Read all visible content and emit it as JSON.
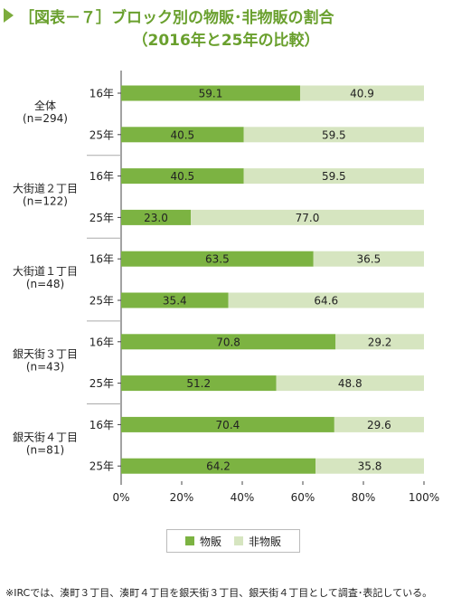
{
  "title": "［図表－７］ブロック別の物販･非物販の割合",
  "subtitle": "（2016年と25年の比較）",
  "colors": {
    "buppan": "#7cb342",
    "hibuppan": "#d6e5c0",
    "divider": "#aaaaaa"
  },
  "legend": {
    "buppan": "物販",
    "hibuppan": "非物販"
  },
  "note": "※IRCでは、湊町３丁目、湊町４丁目を銀天街３丁目、銀天街４丁目として調査･表記している。",
  "chart_data": {
    "type": "bar",
    "orientation": "horizontal",
    "stacked": true,
    "xlim": [
      0,
      100
    ],
    "x_ticks": [
      "0%",
      "20%",
      "40%",
      "60%",
      "80%",
      "100%"
    ],
    "groups": [
      {
        "name": "全体",
        "n": "(n=294)",
        "rows": [
          {
            "label": "16年",
            "buppan": 59.1,
            "hibuppan": 40.9,
            "buppan_label": "59.1",
            "hibuppan_label": "40.9"
          },
          {
            "label": "25年",
            "buppan": 40.5,
            "hibuppan": 59.5,
            "buppan_label": "40.5",
            "hibuppan_label": "59.5"
          }
        ]
      },
      {
        "name": "大街道２丁目",
        "n": "(n=122)",
        "rows": [
          {
            "label": "16年",
            "buppan": 40.5,
            "hibuppan": 59.5,
            "buppan_label": "40.5",
            "hibuppan_label": "59.5"
          },
          {
            "label": "25年",
            "buppan": 23.0,
            "hibuppan": 77.0,
            "buppan_label": "23.0",
            "hibuppan_label": "77.0"
          }
        ]
      },
      {
        "name": "大街道１丁目",
        "n": "(n=48)",
        "rows": [
          {
            "label": "16年",
            "buppan": 63.5,
            "hibuppan": 36.5,
            "buppan_label": "63.5",
            "hibuppan_label": "36.5"
          },
          {
            "label": "25年",
            "buppan": 35.4,
            "hibuppan": 64.6,
            "buppan_label": "35.4",
            "hibuppan_label": "64.6"
          }
        ]
      },
      {
        "name": "銀天街３丁目",
        "n": "(n=43)",
        "rows": [
          {
            "label": "16年",
            "buppan": 70.8,
            "hibuppan": 29.2,
            "buppan_label": "70.8",
            "hibuppan_label": "29.2"
          },
          {
            "label": "25年",
            "buppan": 51.2,
            "hibuppan": 48.8,
            "buppan_label": "51.2",
            "hibuppan_label": "48.8"
          }
        ]
      },
      {
        "name": "銀天街４丁目",
        "n": "(n=81)",
        "rows": [
          {
            "label": "16年",
            "buppan": 70.4,
            "hibuppan": 29.6,
            "buppan_label": "70.4",
            "hibuppan_label": "29.6"
          },
          {
            "label": "25年",
            "buppan": 64.2,
            "hibuppan": 35.8,
            "buppan_label": "64.2",
            "hibuppan_label": "35.8"
          }
        ]
      }
    ]
  }
}
